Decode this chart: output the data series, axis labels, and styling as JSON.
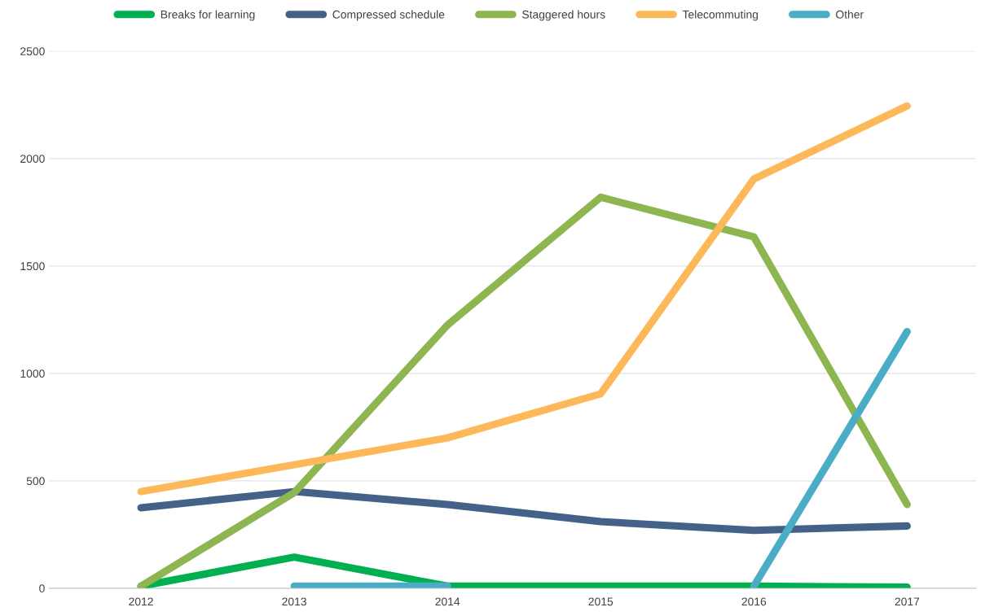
{
  "chart_data": {
    "type": "line",
    "categories": [
      "2012",
      "2013",
      "2014",
      "2015",
      "2016",
      "2017"
    ],
    "series": [
      {
        "name": "Breaks for learning",
        "color": "#00b050",
        "values": [
          10,
          145,
          10,
          10,
          10,
          5
        ]
      },
      {
        "name": "Compressed schedule",
        "color": "#44618a",
        "values": [
          375,
          450,
          390,
          310,
          270,
          290
        ]
      },
      {
        "name": "Staggered hours",
        "color": "#8db550",
        "values": [
          10,
          445,
          1225,
          1820,
          1635,
          390
        ]
      },
      {
        "name": "Telecommuting",
        "color": "#fdb85a",
        "values": [
          450,
          575,
          700,
          905,
          1905,
          2245
        ]
      },
      {
        "name": "Other",
        "color": "#4bacc6",
        "values": [
          null,
          10,
          10,
          null,
          10,
          1195
        ]
      }
    ],
    "ylim": [
      0,
      2500
    ],
    "yticks": [
      0,
      500,
      1000,
      1500,
      2000,
      2500
    ],
    "grid": "y",
    "legend": "top",
    "marker": "none",
    "line_style": "solid"
  }
}
